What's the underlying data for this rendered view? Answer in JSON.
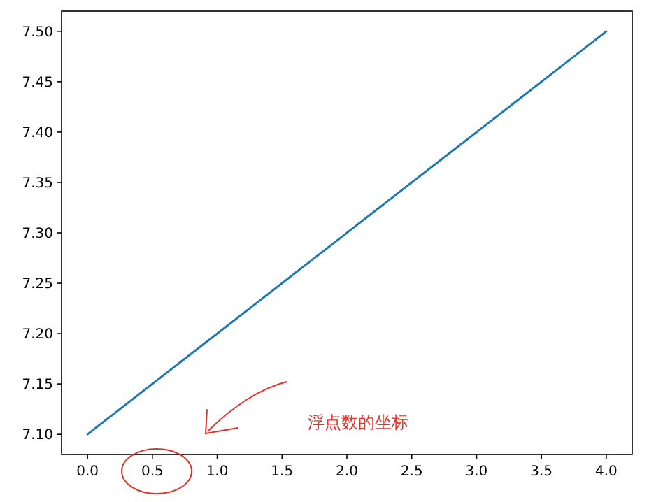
{
  "chart_data": {
    "type": "line",
    "x": [
      0,
      4
    ],
    "series": [
      {
        "color": "#1f77b4",
        "values": [
          7.1,
          7.5
        ]
      }
    ],
    "xlim": [
      -0.2,
      4.2
    ],
    "xticks": [
      {
        "value": 0,
        "label": "0.0"
      },
      {
        "value": 0.5,
        "label": "0.5"
      },
      {
        "value": 1,
        "label": "1.0"
      },
      {
        "value": 1.5,
        "label": "1.5"
      },
      {
        "value": 2,
        "label": "2.0"
      },
      {
        "value": 2.5,
        "label": "2.5"
      },
      {
        "value": 3,
        "label": "3.0"
      },
      {
        "value": 3.5,
        "label": "3.5"
      },
      {
        "value": 4,
        "label": "4.0"
      }
    ],
    "ylim": [
      7.08,
      7.52
    ],
    "yticks": [
      {
        "value": 7.1,
        "label": "7.10"
      },
      {
        "value": 7.15,
        "label": "7.15"
      },
      {
        "value": 7.2,
        "label": "7.20"
      },
      {
        "value": 7.25,
        "label": "7.25"
      },
      {
        "value": 7.3,
        "label": "7.30"
      },
      {
        "value": 7.35,
        "label": "7.35"
      },
      {
        "value": 7.4,
        "label": "7.40"
      },
      {
        "value": 7.45,
        "label": "7.45"
      },
      {
        "value": 7.5,
        "label": "7.50"
      }
    ],
    "annotations": [
      "浮点数的坐标"
    ]
  }
}
